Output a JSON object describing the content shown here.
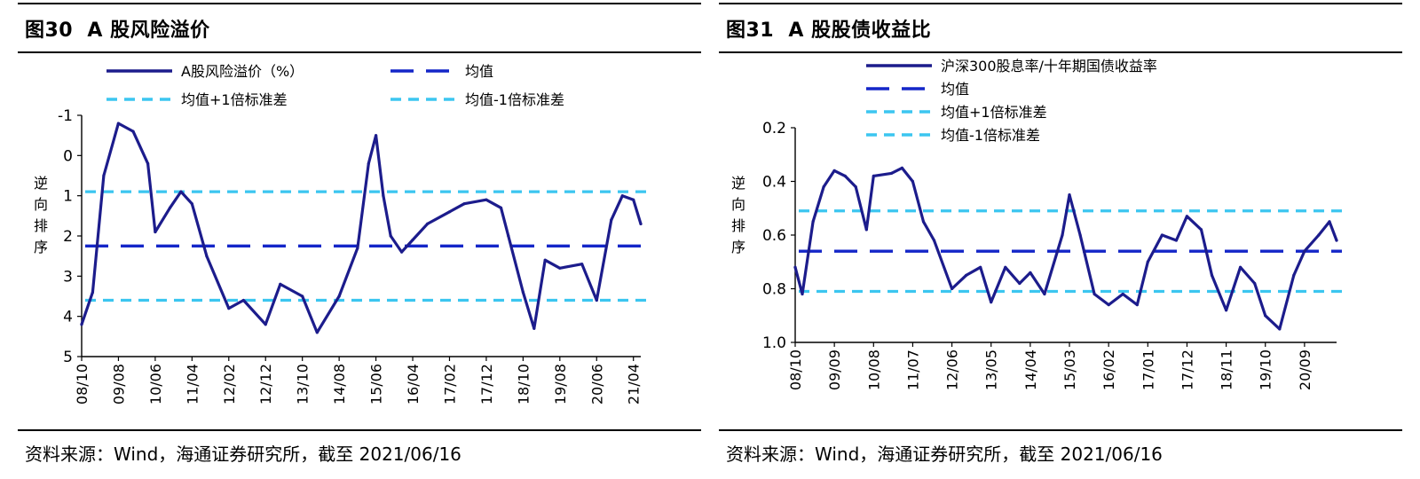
{
  "charts": [
    {
      "title": "图30  A 股风险溢价",
      "source": "资料来源：Wind，海通证券研究所，截至 2021/06/16",
      "ylabel": "逆\n向\n排\n序",
      "chart_data": {
        "type": "line",
        "title": "图30  A 股风险溢价",
        "ylabel": "逆向排序",
        "y_inverted": true,
        "ylim": [
          -1,
          5
        ],
        "yticks": [
          "-1",
          "0",
          "1",
          "2",
          "3",
          "4",
          "5"
        ],
        "xticks": [
          "08/10",
          "09/08",
          "10/06",
          "11/04",
          "12/02",
          "12/12",
          "13/10",
          "14/08",
          "15/06",
          "16/04",
          "17/02",
          "17/12",
          "18/10",
          "19/08",
          "20/06",
          "21/04"
        ],
        "legend_position": "top",
        "series": [
          {
            "name": "A股风险溢价（%）",
            "style": "solid",
            "color": "#1c1c8c",
            "x": [
              "08/10",
              "09/01",
              "09/04",
              "09/08",
              "09/12",
              "10/04",
              "10/06",
              "10/10",
              "11/01",
              "11/04",
              "11/08",
              "12/02",
              "12/06",
              "12/12",
              "13/04",
              "13/10",
              "14/02",
              "14/08",
              "15/01",
              "15/04",
              "15/06",
              "15/08",
              "15/10",
              "16/01",
              "16/04",
              "16/08",
              "17/02",
              "17/06",
              "17/12",
              "18/04",
              "18/06",
              "18/10",
              "19/01",
              "19/04",
              "19/08",
              "20/02",
              "20/06",
              "20/10",
              "21/01",
              "21/04",
              "21/06"
            ],
            "values": [
              4.2,
              3.4,
              0.5,
              -0.8,
              -0.6,
              0.2,
              1.9,
              1.3,
              0.9,
              1.2,
              2.5,
              3.8,
              3.6,
              4.2,
              3.2,
              3.5,
              4.4,
              3.5,
              2.3,
              0.2,
              -0.5,
              1.0,
              2.0,
              2.4,
              2.1,
              1.7,
              1.4,
              1.2,
              1.1,
              1.3,
              2.0,
              3.4,
              4.3,
              2.6,
              2.8,
              2.7,
              3.6,
              1.6,
              1.0,
              1.1,
              1.7
            ]
          },
          {
            "name": "均值",
            "style": "long-dash",
            "color": "#1426c8",
            "constant": 2.25
          },
          {
            "name": "均值+1倍标准差",
            "style": "dash",
            "color": "#3cc6f0",
            "constant": 0.9
          },
          {
            "name": "均值-1倍标准差",
            "style": "dash",
            "color": "#3cc6f0",
            "constant": 3.6
          }
        ]
      }
    },
    {
      "title": "图31  A 股股债收益比",
      "source": "资料来源：Wind，海通证券研究所，截至 2021/06/16",
      "ylabel": "逆\n向\n排\n序",
      "chart_data": {
        "type": "line",
        "title": "图31  A 股股债收益比",
        "ylabel": "逆向排序",
        "y_inverted": true,
        "ylim": [
          0.2,
          1.0
        ],
        "yticks": [
          "0.2",
          "0.4",
          "0.6",
          "0.8",
          "1.0"
        ],
        "xticks": [
          "08/10",
          "09/09",
          "10/08",
          "11/07",
          "12/06",
          "13/05",
          "14/04",
          "15/03",
          "16/02",
          "17/01",
          "17/12",
          "18/11",
          "19/10",
          "20/09"
        ],
        "legend_position": "top",
        "series": [
          {
            "name": "沪深300股息率/十年期国债收益率",
            "style": "solid",
            "color": "#1c1c8c",
            "x": [
              "08/10",
              "08/12",
              "09/03",
              "09/06",
              "09/09",
              "09/12",
              "10/03",
              "10/06",
              "10/08",
              "11/01",
              "11/04",
              "11/07",
              "11/10",
              "12/01",
              "12/06",
              "12/10",
              "13/02",
              "13/05",
              "13/09",
              "14/01",
              "14/04",
              "14/08",
              "15/01",
              "15/03",
              "15/06",
              "15/10",
              "16/02",
              "16/06",
              "16/10",
              "17/01",
              "17/05",
              "17/09",
              "17/12",
              "18/04",
              "18/07",
              "18/11",
              "19/03",
              "19/07",
              "19/10",
              "20/02",
              "20/06",
              "20/09",
              "21/01",
              "21/04",
              "21/06"
            ],
            "values": [
              0.72,
              0.82,
              0.55,
              0.42,
              0.36,
              0.38,
              0.42,
              0.58,
              0.38,
              0.37,
              0.35,
              0.4,
              0.55,
              0.62,
              0.8,
              0.75,
              0.72,
              0.85,
              0.72,
              0.78,
              0.74,
              0.82,
              0.6,
              0.45,
              0.6,
              0.82,
              0.86,
              0.82,
              0.86,
              0.7,
              0.6,
              0.62,
              0.53,
              0.58,
              0.75,
              0.88,
              0.72,
              0.78,
              0.9,
              0.95,
              0.75,
              0.66,
              0.6,
              0.55,
              0.62
            ]
          },
          {
            "name": "均值",
            "style": "long-dash",
            "color": "#1426c8",
            "constant": 0.66
          },
          {
            "name": "均值+1倍标准差",
            "style": "dash",
            "color": "#3cc6f0",
            "constant": 0.51
          },
          {
            "name": "均值-1倍标准差",
            "style": "dash",
            "color": "#3cc6f0",
            "constant": 0.81
          }
        ]
      }
    }
  ]
}
